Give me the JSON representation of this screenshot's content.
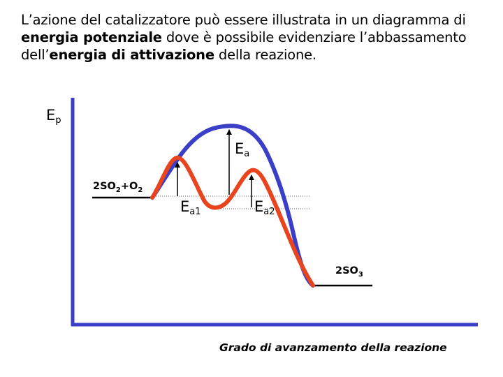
{
  "intro": {
    "part1": "L’azione del catalizzatore può essere illustrata in un diagramma di ",
    "bold1": "energia potenziale",
    "part2": " dove è possibile evidenziare l’abbassamento dell’",
    "bold2": "energia di attivazione",
    "part3": " della reazione."
  },
  "diagram": {
    "y_axis_label": {
      "main": "E",
      "sub": "p"
    },
    "reactants_label": "2SO2+O2",
    "products_label": "2SO3",
    "ea_label": {
      "main": "E",
      "sub": "a"
    },
    "ea1_label": {
      "main": "E",
      "sub": "a1"
    },
    "ea2_label": {
      "main": "E",
      "sub": "a2"
    },
    "x_axis_label": "Grado di avanzamento della reazione",
    "colors": {
      "uncatalyzed_curve": "#3b3ec6",
      "catalyzed_curve": "#e8441e",
      "axes": "#3b3ec6",
      "arrows": "#000000"
    }
  }
}
